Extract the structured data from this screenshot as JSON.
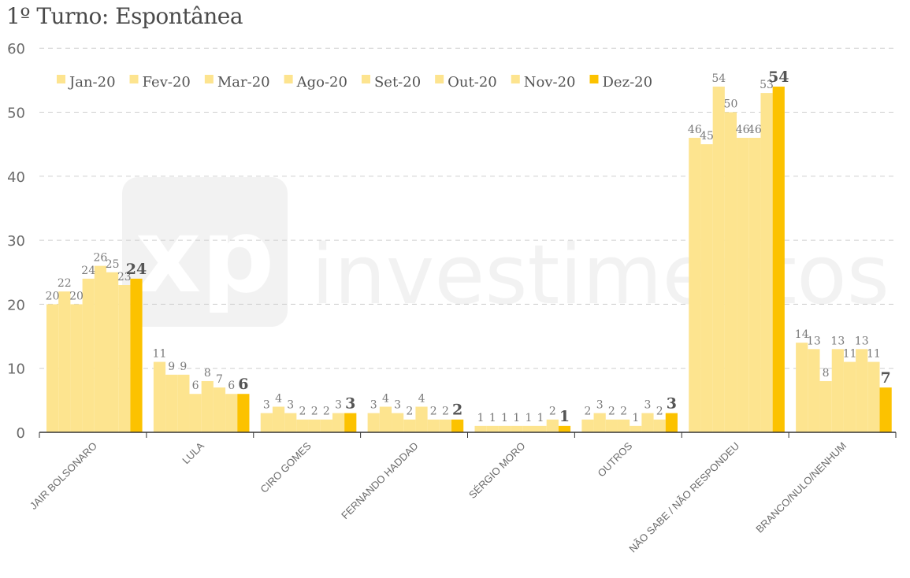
{
  "title": "1º Turno: Espontânea",
  "chart_data": {
    "type": "bar",
    "title": "1º Turno: Espontânea",
    "categories": [
      "JAIR BOLSONARO",
      "LULA",
      "CIRO GOMES",
      "FERNANDO HADDAD",
      "SÉRGIO MORO",
      "OUTROS",
      "NÃO SABE / NÃO RESPONDEU",
      "BRANCO/NULO/NENHUM"
    ],
    "series": [
      {
        "name": "Jan-20",
        "values": [
          20,
          11,
          3,
          3,
          1,
          2,
          46,
          14
        ]
      },
      {
        "name": "Fev-20",
        "values": [
          22,
          9,
          4,
          4,
          1,
          3,
          45,
          13
        ]
      },
      {
        "name": "Mar-20",
        "values": [
          20,
          9,
          3,
          3,
          1,
          2,
          54,
          8
        ]
      },
      {
        "name": "Ago-20",
        "values": [
          24,
          6,
          2,
          2,
          1,
          2,
          50,
          13
        ]
      },
      {
        "name": "Set-20",
        "values": [
          26,
          8,
          2,
          4,
          1,
          1,
          46,
          11
        ]
      },
      {
        "name": "Out-20",
        "values": [
          25,
          7,
          2,
          2,
          1,
          3,
          46,
          13
        ]
      },
      {
        "name": "Nov-20",
        "values": [
          23,
          6,
          3,
          2,
          2,
          2,
          53,
          11
        ]
      },
      {
        "name": "Dez-20",
        "values": [
          24,
          6,
          3,
          2,
          1,
          3,
          54,
          7
        ]
      }
    ],
    "ylim": [
      0,
      60
    ],
    "yticks": [
      0,
      10,
      20,
      30,
      40,
      50,
      60
    ],
    "grid": true,
    "legend_position": "top-left",
    "colors": {
      "light": "#fde48f",
      "highlight": "#fcc200",
      "axis": "#333333",
      "grid": "#cfcfcf"
    }
  },
  "watermark": {
    "text": "investimentos",
    "logo": "xp"
  }
}
